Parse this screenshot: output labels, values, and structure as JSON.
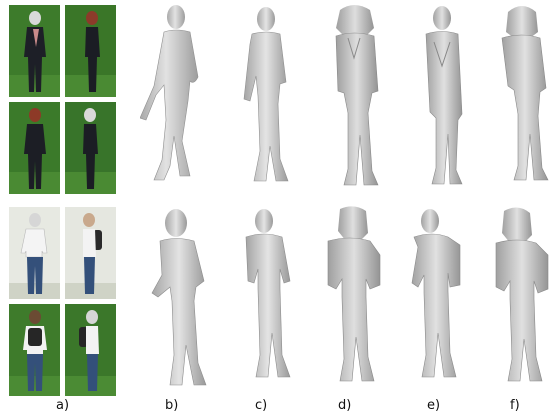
{
  "panel_labels": [
    "a)",
    "b)",
    "c)",
    "d)",
    "e)",
    "f)"
  ],
  "colors": {
    "green_screen": "#3f7a2a",
    "mesh": "#c9c9c9",
    "mesh_dark": "#8d8d8d"
  }
}
